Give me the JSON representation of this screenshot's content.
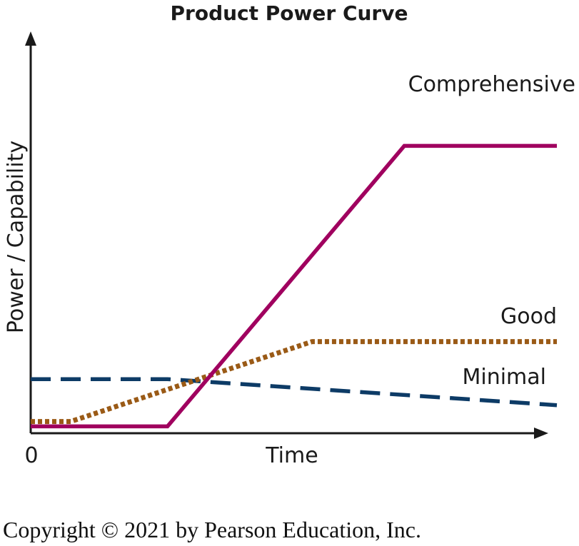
{
  "chart_data": {
    "type": "line",
    "title": "Product Power Curve",
    "xlabel": "Time",
    "ylabel": "Power / Capability",
    "x_tick_labels": [
      "0"
    ],
    "xlim": [
      0,
      100
    ],
    "ylim": [
      0,
      100
    ],
    "axis_arrows": true,
    "grid": false,
    "legend": "inline labels",
    "series": [
      {
        "name": "Comprehensive",
        "color": "#a0005f",
        "dash": "solid",
        "points": [
          [
            0,
            1
          ],
          [
            26,
            1
          ],
          [
            71,
            87
          ],
          [
            100,
            87
          ]
        ]
      },
      {
        "name": "Good",
        "color": "#9a5a16",
        "dash": "dotted",
        "points": [
          [
            0,
            2.5
          ],
          [
            7.6,
            2.5
          ],
          [
            53.5,
            27
          ],
          [
            100,
            27
          ]
        ]
      },
      {
        "name": "Minimal",
        "color": "#0d3b66",
        "dash": "dashed",
        "points": [
          [
            0,
            15.5
          ],
          [
            26,
            15.5
          ],
          [
            100,
            7.5
          ]
        ]
      }
    ]
  },
  "copyright": "Copyright © 2021 by Pearson Education, Inc."
}
